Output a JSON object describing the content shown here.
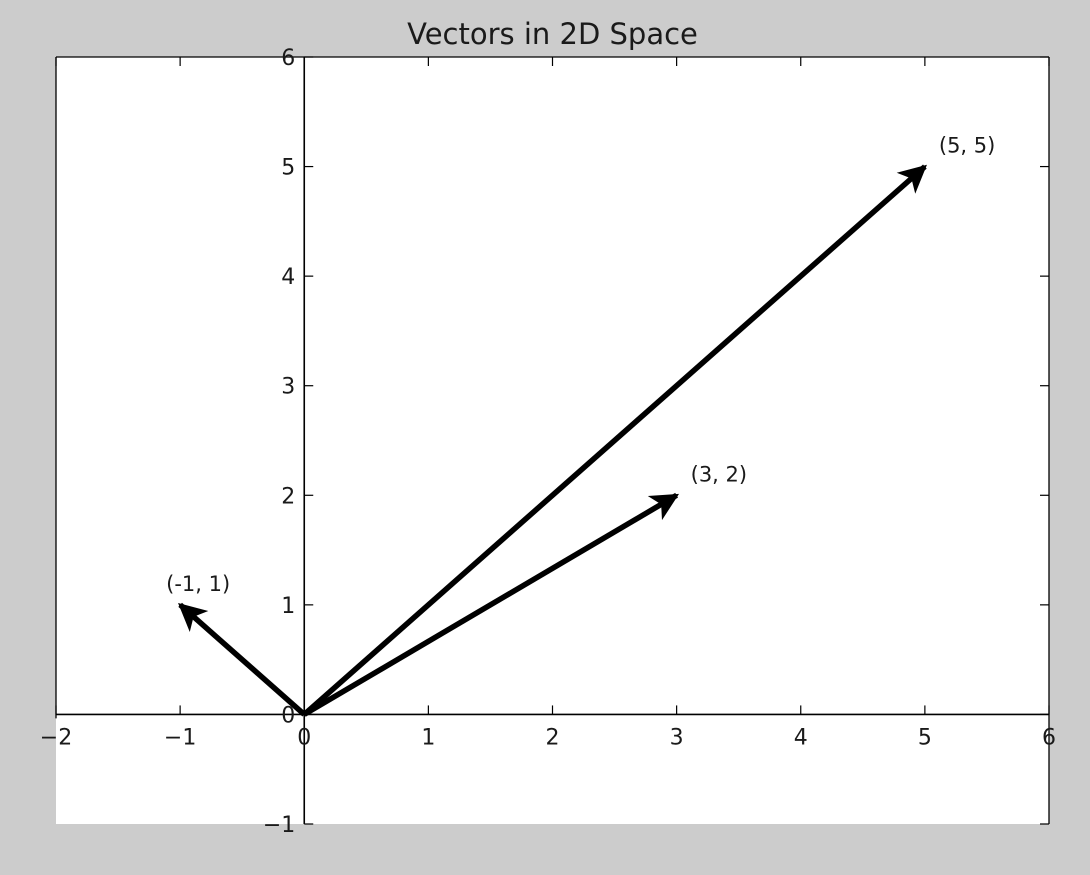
{
  "chart_data": {
    "type": "vector",
    "title": "Vectors in 2D Space",
    "xlabel": "",
    "ylabel": "",
    "xlim": [
      -2,
      6
    ],
    "ylim": [
      -1,
      6
    ],
    "x_ticks": [
      -2,
      -1,
      0,
      1,
      2,
      3,
      4,
      5,
      6
    ],
    "y_ticks": [
      -1,
      0,
      1,
      2,
      3,
      4,
      5,
      6
    ],
    "x_tick_labels": [
      "−2",
      "−1",
      "0",
      "1",
      "2",
      "3",
      "4",
      "5",
      "6"
    ],
    "y_tick_labels": [
      "−1",
      "0",
      "1",
      "2",
      "3",
      "4",
      "5",
      "6"
    ],
    "grid": false,
    "spines_through_origin": true,
    "vectors": [
      {
        "origin": [
          0,
          0
        ],
        "x": -1,
        "y": 1,
        "label": "(-1, 1)"
      },
      {
        "origin": [
          0,
          0
        ],
        "x": 3,
        "y": 2,
        "label": "(3, 2)"
      },
      {
        "origin": [
          0,
          0
        ],
        "x": 5,
        "y": 5,
        "label": "(5, 5)"
      }
    ],
    "colors": {
      "figure_background": "#cccccc",
      "axes_background": "#ffffff",
      "vector": "#000000",
      "axis_line": "#000000"
    }
  }
}
